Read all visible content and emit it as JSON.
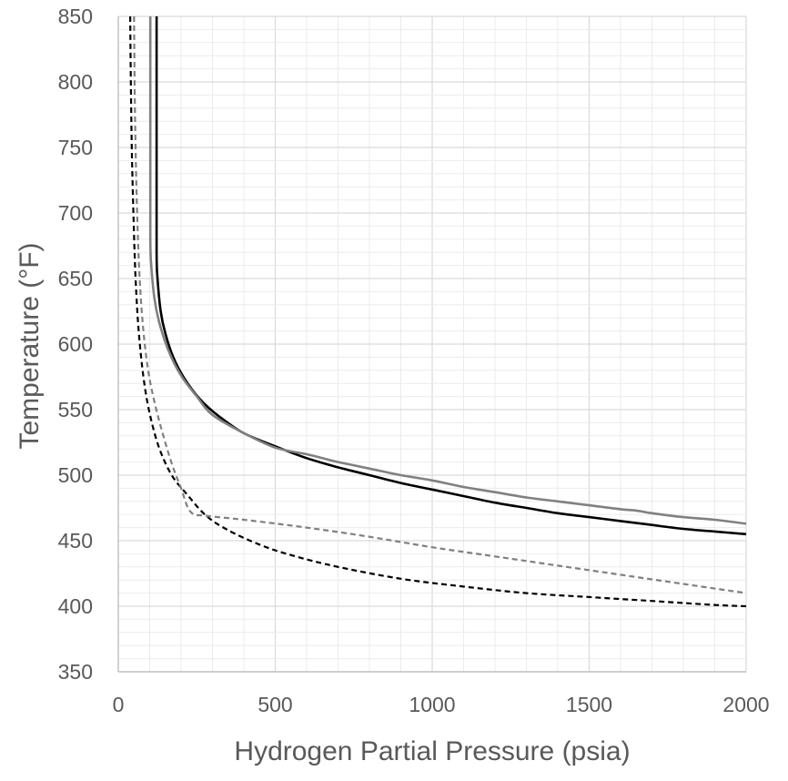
{
  "chart_data": {
    "type": "line",
    "title": "",
    "xlabel": "Hydrogen Partial Pressure (psia)",
    "ylabel": "Temperature (°F)",
    "xlim": [
      0,
      2000
    ],
    "ylim": [
      350,
      850
    ],
    "x_ticks": [
      "0",
      "500",
      "1000",
      "1500",
      "2000"
    ],
    "y_ticks": [
      "350",
      "400",
      "450",
      "500",
      "550",
      "600",
      "650",
      "700",
      "750",
      "800",
      "850"
    ],
    "x_minor_step": 100,
    "y_minor_step": 10,
    "grid": true,
    "legend": "none",
    "series": [
      {
        "color": "#000000",
        "style": "solid",
        "x": [
          122,
          122,
          122,
          125,
          135,
          150,
          175,
          210,
          260,
          320,
          400,
          500,
          600,
          700,
          800,
          900,
          1000,
          1100,
          1200,
          1300,
          1400,
          1500,
          1600,
          1700,
          1800,
          1900,
          2000
        ],
        "y": [
          850,
          750,
          670,
          650,
          625,
          608,
          590,
          574,
          558,
          545,
          532,
          522,
          513,
          506,
          500,
          494,
          489,
          484,
          479,
          475,
          471,
          468,
          465,
          462,
          459,
          457,
          455
        ]
      },
      {
        "color": "#808080",
        "style": "solid",
        "x": [
          102,
          102,
          102,
          105,
          115,
          130,
          160,
          200,
          250,
          300,
          400,
          500,
          600,
          650,
          700,
          800,
          900,
          1000,
          1100,
          1200,
          1300,
          1400,
          1500,
          1600,
          1650,
          1700,
          1800,
          1900,
          2000
        ],
        "y": [
          850,
          750,
          680,
          660,
          635,
          617,
          595,
          576,
          560,
          546,
          532,
          521,
          516,
          513,
          510,
          505,
          500,
          496,
          491,
          487,
          483,
          480,
          477,
          474,
          473,
          471,
          468,
          466,
          463
        ]
      },
      {
        "color": "#000000",
        "style": "dashed",
        "x": [
          38,
          40,
          43,
          48,
          55,
          65,
          80,
          100,
          130,
          170,
          220,
          280,
          350,
          450,
          550,
          700,
          900,
          1100,
          1300,
          1500,
          1700,
          1900,
          2000
        ],
        "y": [
          850,
          800,
          750,
          700,
          650,
          610,
          575,
          547,
          521,
          500,
          485,
          469,
          458,
          447,
          439,
          430,
          421,
          415,
          410,
          407,
          404,
          401,
          400
        ]
      },
      {
        "color": "#808080",
        "style": "dashed",
        "x": [
          50,
          52,
          55,
          60,
          68,
          80,
          95,
          115,
          140,
          170,
          200,
          230,
          280,
          400,
          600,
          800,
          1000,
          1200,
          1400,
          1600,
          1800,
          2000
        ],
        "y": [
          850,
          800,
          750,
          700,
          650,
          610,
          580,
          556,
          533,
          509,
          490,
          472,
          469,
          466,
          460,
          453,
          445,
          438,
          431,
          424,
          417,
          410
        ]
      }
    ]
  }
}
